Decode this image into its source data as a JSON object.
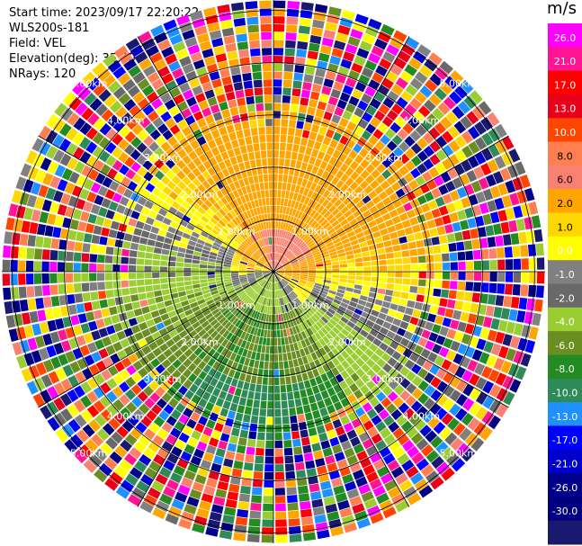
{
  "header": {
    "start_time": "Start time: 2023/09/17 22:20:22",
    "instrument": "WLS200s-181",
    "field": "Field: VEL",
    "elevation": "Elevation(deg): 35.30",
    "nrays": "NRays: 120"
  },
  "chart_data": {
    "type": "heatmap",
    "projection": "polar PPI (plan position indicator)",
    "field": "VEL",
    "unit": "m/s",
    "n_rays": 120,
    "elevation_deg": 35.3,
    "range_rings_km": [
      1.0,
      2.0,
      3.0,
      4.0,
      5.0
    ],
    "range_ring_labels": [
      "1.00km",
      "2.00km",
      "3.00km",
      "4.00km",
      "5.00km"
    ],
    "max_range_km": 5.2,
    "spoke_step_deg": 30,
    "colorbar": {
      "title": "m/s",
      "tick_labels": [
        "26.0",
        "21.0",
        "17.0",
        "13.0",
        "10.0",
        "8.0",
        "6.0",
        "2.0",
        "1.0",
        "0.0",
        "-1.0",
        "-2.0",
        "-4.0",
        "-6.0",
        "-8.0",
        "-10.0",
        "-13.0",
        "-17.0",
        "-21.0",
        "-26.0",
        "-30.0"
      ],
      "colors": [
        "#ff00ff",
        "#ff1493",
        "#ff0000",
        "#e8001a",
        "#ff4500",
        "#ff7f50",
        "#fa8072",
        "#ffa500",
        "#ffd700",
        "#ffff00",
        "#808080",
        "#696969",
        "#9acd32",
        "#6b8e23",
        "#228b22",
        "#2e8b57",
        "#1e90ff",
        "#0000ff",
        "#0000cd",
        "#00008b",
        "#000080",
        "#191970"
      ]
    },
    "velocity_pattern": {
      "near_range_km": 0.8,
      "clean_range_km": 2.8,
      "noisy_range_km": 3.2,
      "receding_sector_deg": [
        -100,
        70
      ],
      "approaching_sector_deg": [
        100,
        250
      ]
    }
  }
}
